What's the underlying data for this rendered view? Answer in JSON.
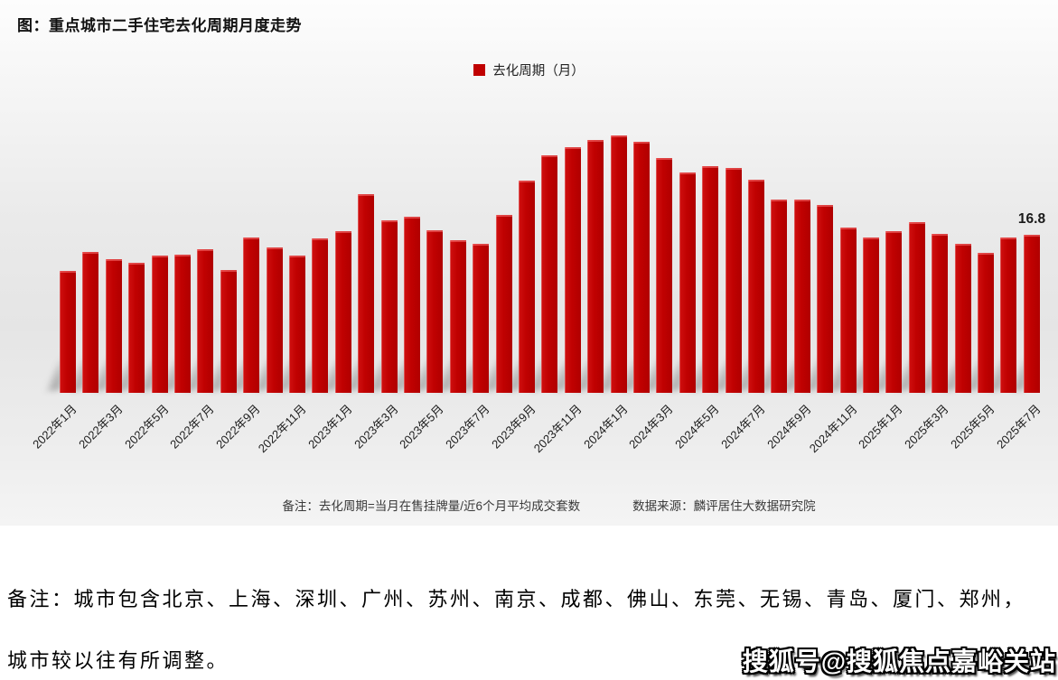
{
  "chart": {
    "title": "图：重点城市二手住宅去化周期月度走势",
    "legend_label": "去化周期（月）",
    "last_value_label": "16.8",
    "note": "备注：去化周期=当月在售挂牌量/近6个月平均成交套数",
    "source": "数据来源：麟评居住大数据研究院"
  },
  "chart_data": {
    "type": "bar",
    "title": "重点城市二手住宅去化周期月度走势",
    "series_name": "去化周期（月）",
    "bar_color": "#c00101",
    "grid": false,
    "legend_position": "top-center",
    "ylim": [
      0,
      28
    ],
    "x_tick_every": 2,
    "categories": [
      "2022年1月",
      "2022年2月",
      "2022年3月",
      "2022年4月",
      "2022年5月",
      "2022年6月",
      "2022年7月",
      "2022年8月",
      "2022年9月",
      "2022年10月",
      "2022年11月",
      "2022年12月",
      "2023年1月",
      "2023年2月",
      "2023年3月",
      "2023年4月",
      "2023年5月",
      "2023年6月",
      "2023年7月",
      "2023年8月",
      "2023年9月",
      "2023年10月",
      "2023年11月",
      "2023年12月",
      "2024年1月",
      "2024年2月",
      "2024年3月",
      "2024年4月",
      "2024年5月",
      "2024年6月",
      "2024年7月",
      "2024年8月",
      "2024年9月",
      "2024年10月",
      "2024年11月",
      "2024年12月",
      "2025年1月",
      "2025年2月",
      "2025年3月",
      "2025年4月",
      "2025年5月",
      "2025年6月",
      "2025年7月"
    ],
    "values": [
      13.0,
      15.0,
      14.2,
      13.8,
      14.6,
      14.7,
      15.3,
      13.1,
      16.5,
      15.5,
      14.6,
      16.4,
      17.2,
      21.1,
      18.3,
      18.7,
      17.3,
      16.2,
      15.8,
      18.9,
      22.6,
      25.2,
      26.1,
      26.9,
      27.4,
      26.7,
      25.0,
      23.4,
      24.1,
      23.9,
      22.7,
      20.5,
      20.5,
      20.0,
      17.6,
      16.5,
      17.2,
      18.1,
      16.9,
      15.8,
      14.9,
      16.5,
      16.8
    ],
    "annotations": [
      {
        "category": "2025年7月",
        "text": "16.8"
      }
    ]
  },
  "footer": {
    "remark_line1": "备注：城市包含北京、上海、深圳、广州、苏州、南京、成都、佛山、东莞、无锡、青岛、厦门、郑州，",
    "remark_line2": "城市较以往有所调整。",
    "watermark": "搜狐号@搜狐焦点嘉峪关站"
  }
}
